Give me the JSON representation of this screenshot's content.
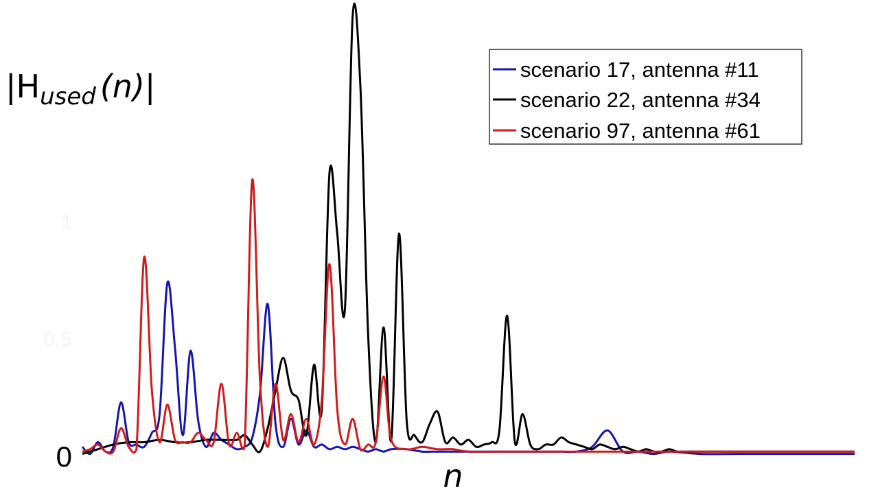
{
  "chart_data": {
    "type": "line",
    "title": "",
    "ylabel_parts": [
      "|H",
      "used",
      "(n)|"
    ],
    "xlabel": "n",
    "ylim": [
      0,
      1.93
    ],
    "xlim": [
      0,
      1.0
    ],
    "y_ticks": [
      0,
      0.5,
      1
    ],
    "y_tick_labels": [
      "0",
      "0.5",
      "1"
    ],
    "grid": false,
    "legend_position": "top-right",
    "series": [
      {
        "name": "scenario 17, antenna #11",
        "color": "#1414b4",
        "x": [
          0.0,
          0.01,
          0.02,
          0.03,
          0.04,
          0.05,
          0.06,
          0.07,
          0.08,
          0.09,
          0.1,
          0.11,
          0.12,
          0.13,
          0.14,
          0.15,
          0.16,
          0.17,
          0.18,
          0.19,
          0.2,
          0.21,
          0.22,
          0.23,
          0.24,
          0.25,
          0.26,
          0.27,
          0.28,
          0.29,
          0.3,
          0.31,
          0.32,
          0.33,
          0.34,
          0.35,
          0.36,
          0.37,
          0.38,
          0.39,
          0.4,
          0.42,
          0.44,
          0.46,
          0.48,
          0.5,
          0.52,
          0.54,
          0.56,
          0.58,
          0.6,
          0.62,
          0.64,
          0.66,
          0.68,
          0.7,
          0.72,
          0.74,
          0.76,
          0.8,
          0.85,
          0.9,
          0.95,
          1.0
        ],
        "y": [
          0.04,
          0.01,
          0.06,
          0.02,
          0.04,
          0.23,
          0.06,
          0.05,
          0.04,
          0.1,
          0.18,
          0.74,
          0.46,
          0.09,
          0.45,
          0.15,
          0.04,
          0.1,
          0.07,
          0.05,
          0.03,
          0.04,
          0.08,
          0.27,
          0.65,
          0.14,
          0.04,
          0.16,
          0.05,
          0.11,
          0.04,
          0.05,
          0.03,
          0.04,
          0.03,
          0.04,
          0.03,
          0.02,
          0.03,
          0.02,
          0.03,
          0.03,
          0.02,
          0.02,
          0.02,
          0.02,
          0.02,
          0.02,
          0.02,
          0.02,
          0.02,
          0.02,
          0.02,
          0.04,
          0.11,
          0.02,
          0.02,
          0.01,
          0.02,
          0.01,
          0.01,
          0.01,
          0.01,
          0.01
        ]
      },
      {
        "name": "scenario 22, antenna #34",
        "color": "#000000",
        "x": [
          0.0,
          0.02,
          0.04,
          0.06,
          0.08,
          0.1,
          0.12,
          0.14,
          0.16,
          0.18,
          0.2,
          0.21,
          0.22,
          0.23,
          0.24,
          0.25,
          0.26,
          0.27,
          0.28,
          0.29,
          0.3,
          0.31,
          0.32,
          0.33,
          0.34,
          0.35,
          0.36,
          0.37,
          0.38,
          0.39,
          0.4,
          0.41,
          0.42,
          0.43,
          0.44,
          0.45,
          0.46,
          0.47,
          0.48,
          0.49,
          0.5,
          0.51,
          0.52,
          0.53,
          0.54,
          0.55,
          0.56,
          0.57,
          0.58,
          0.59,
          0.6,
          0.61,
          0.62,
          0.63,
          0.64,
          0.65,
          0.66,
          0.67,
          0.68,
          0.69,
          0.7,
          0.71,
          0.72,
          0.73,
          0.74,
          0.75,
          0.76,
          0.77,
          0.78,
          0.79,
          0.8,
          0.81,
          0.82,
          0.83,
          0.84,
          0.85,
          0.86,
          0.87,
          0.88,
          0.89,
          0.9,
          0.91,
          0.92,
          0.93,
          0.94,
          0.95,
          0.96,
          0.97,
          0.98,
          0.99,
          1.0
        ],
        "y": [
          0.01,
          0.03,
          0.05,
          0.06,
          0.06,
          0.07,
          0.06,
          0.06,
          0.07,
          0.07,
          0.07,
          0.09,
          0.05,
          0.02,
          0.12,
          0.28,
          0.42,
          0.28,
          0.24,
          0.09,
          0.39,
          0.2,
          1.21,
          0.95,
          0.63,
          1.88,
          1.58,
          0.52,
          0.06,
          0.55,
          0.07,
          0.95,
          0.15,
          0.09,
          0.06,
          0.14,
          0.19,
          0.06,
          0.08,
          0.05,
          0.07,
          0.04,
          0.05,
          0.06,
          0.11,
          0.6,
          0.06,
          0.18,
          0.05,
          0.03,
          0.05,
          0.05,
          0.08,
          0.06,
          0.05,
          0.04,
          0.03,
          0.05,
          0.04,
          0.03,
          0.04,
          0.03,
          0.02,
          0.03,
          0.02,
          0.02,
          0.03,
          0.02,
          0.02,
          0.02,
          0.02,
          0.02,
          0.02,
          0.02,
          0.02,
          0.02,
          0.02,
          0.02,
          0.02,
          0.02,
          0.02,
          0.02,
          0.02,
          0.02,
          0.02,
          0.02,
          0.02,
          0.02,
          0.02,
          0.02,
          0.02
        ]
      },
      {
        "name": "scenario 97, antenna #61",
        "color": "#d21a1a",
        "x": [
          0.0,
          0.01,
          0.02,
          0.03,
          0.04,
          0.05,
          0.06,
          0.07,
          0.08,
          0.09,
          0.1,
          0.11,
          0.12,
          0.13,
          0.14,
          0.15,
          0.16,
          0.17,
          0.18,
          0.19,
          0.2,
          0.21,
          0.22,
          0.23,
          0.24,
          0.25,
          0.26,
          0.27,
          0.28,
          0.29,
          0.3,
          0.31,
          0.32,
          0.33,
          0.34,
          0.35,
          0.36,
          0.37,
          0.38,
          0.39,
          0.4,
          0.42,
          0.44,
          0.46,
          0.48,
          0.5,
          0.55,
          0.6,
          0.65,
          0.7,
          0.75,
          0.8,
          0.85,
          0.9,
          0.95,
          1.0
        ],
        "y": [
          0.02,
          0.03,
          0.05,
          0.02,
          0.02,
          0.12,
          0.04,
          0.03,
          0.85,
          0.28,
          0.06,
          0.22,
          0.07,
          0.06,
          0.06,
          0.1,
          0.07,
          0.06,
          0.31,
          0.05,
          0.1,
          0.04,
          1.18,
          0.32,
          0.04,
          0.31,
          0.07,
          0.18,
          0.06,
          0.16,
          0.05,
          0.24,
          0.82,
          0.2,
          0.05,
          0.16,
          0.03,
          0.05,
          0.06,
          0.34,
          0.07,
          0.03,
          0.04,
          0.03,
          0.03,
          0.02,
          0.02,
          0.02,
          0.02,
          0.02,
          0.02,
          0.02,
          0.02,
          0.02,
          0.02,
          0.02
        ]
      }
    ]
  }
}
